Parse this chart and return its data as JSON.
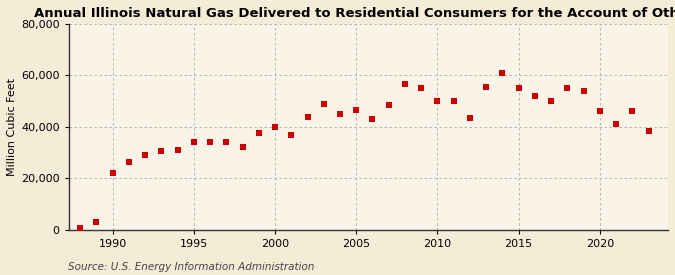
{
  "title": "Annual Illinois Natural Gas Delivered to Residential Consumers for the Account of Others",
  "ylabel": "Million Cubic Feet",
  "source": "Source: U.S. Energy Information Administration",
  "background_color": "#f5ecd7",
  "plot_background_color": "#faf4e8",
  "grid_color": "#aaaaaa",
  "dot_color": "#cc0000",
  "years": [
    1988,
    1989,
    1990,
    1991,
    1992,
    1993,
    1994,
    1995,
    1996,
    1997,
    1998,
    1999,
    2000,
    2001,
    2002,
    2003,
    2004,
    2005,
    2006,
    2007,
    2008,
    2009,
    2010,
    2011,
    2012,
    2013,
    2014,
    2015,
    2016,
    2017,
    2018,
    2019,
    2020,
    2021,
    2022,
    2023
  ],
  "values": [
    500,
    3200,
    22000,
    26500,
    29000,
    30500,
    31000,
    34000,
    34000,
    34000,
    32000,
    37500,
    40000,
    37000,
    44000,
    49000,
    45000,
    46500,
    43000,
    48500,
    56500,
    55000,
    50000,
    50000,
    43500,
    55500,
    61000,
    55000,
    52000,
    50000,
    55000,
    54000,
    46000,
    41000,
    46000,
    38500
  ],
  "ylim": [
    0,
    80000
  ],
  "yticks": [
    0,
    20000,
    40000,
    60000,
    80000
  ],
  "xlim": [
    1987.3,
    2024.2
  ],
  "xticks": [
    1990,
    1995,
    2000,
    2005,
    2010,
    2015,
    2020
  ],
  "title_fontsize": 9.5,
  "ylabel_fontsize": 8,
  "source_fontsize": 7.5,
  "tick_fontsize": 8
}
